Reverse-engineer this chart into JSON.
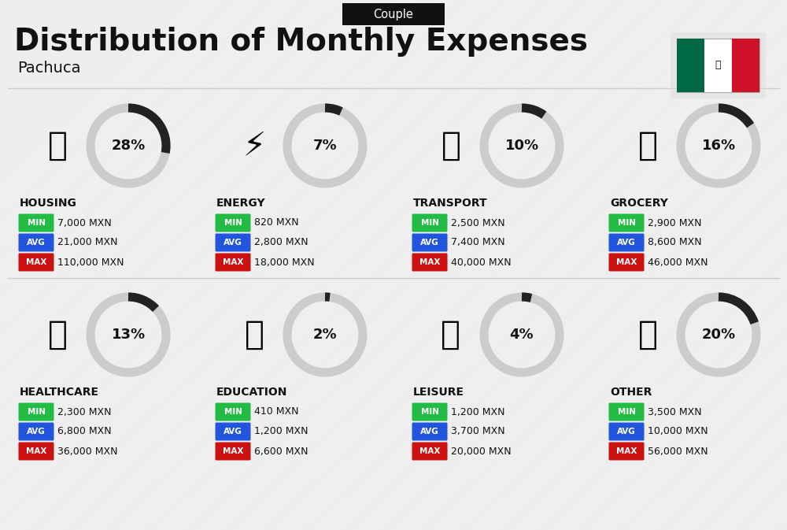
{
  "title": "Distribution of Monthly Expenses",
  "subtitle": "Couple",
  "location": "Pachuca",
  "bg_color": "#eeeeee",
  "categories": [
    {
      "name": "HOUSING",
      "percent": 28,
      "min": "7,000 MXN",
      "avg": "21,000 MXN",
      "max": "110,000 MXN",
      "row": 0,
      "col": 0
    },
    {
      "name": "ENERGY",
      "percent": 7,
      "min": "820 MXN",
      "avg": "2,800 MXN",
      "max": "18,000 MXN",
      "row": 0,
      "col": 1
    },
    {
      "name": "TRANSPORT",
      "percent": 10,
      "min": "2,500 MXN",
      "avg": "7,400 MXN",
      "max": "40,000 MXN",
      "row": 0,
      "col": 2
    },
    {
      "name": "GROCERY",
      "percent": 16,
      "min": "2,900 MXN",
      "avg": "8,600 MXN",
      "max": "46,000 MXN",
      "row": 0,
      "col": 3
    },
    {
      "name": "HEALTHCARE",
      "percent": 13,
      "min": "2,300 MXN",
      "avg": "6,800 MXN",
      "max": "36,000 MXN",
      "row": 1,
      "col": 0
    },
    {
      "name": "EDUCATION",
      "percent": 2,
      "min": "410 MXN",
      "avg": "1,200 MXN",
      "max": "6,600 MXN",
      "row": 1,
      "col": 1
    },
    {
      "name": "LEISURE",
      "percent": 4,
      "min": "1,200 MXN",
      "avg": "3,700 MXN",
      "max": "20,000 MXN",
      "row": 1,
      "col": 2
    },
    {
      "name": "OTHER",
      "percent": 20,
      "min": "3,500 MXN",
      "avg": "10,000 MXN",
      "max": "56,000 MXN",
      "row": 1,
      "col": 3
    }
  ],
  "min_color": "#22bb44",
  "avg_color": "#2255dd",
  "max_color": "#cc1111",
  "title_color": "#111111",
  "text_color": "#111111",
  "donut_bg": "#cccccc",
  "donut_fill": "#222222",
  "flag_green": "#006847",
  "flag_red": "#CE1126",
  "header_bg": "#111111",
  "header_text": "#ffffff",
  "divider_color": "#cccccc",
  "stripe_color": "#ffffff"
}
